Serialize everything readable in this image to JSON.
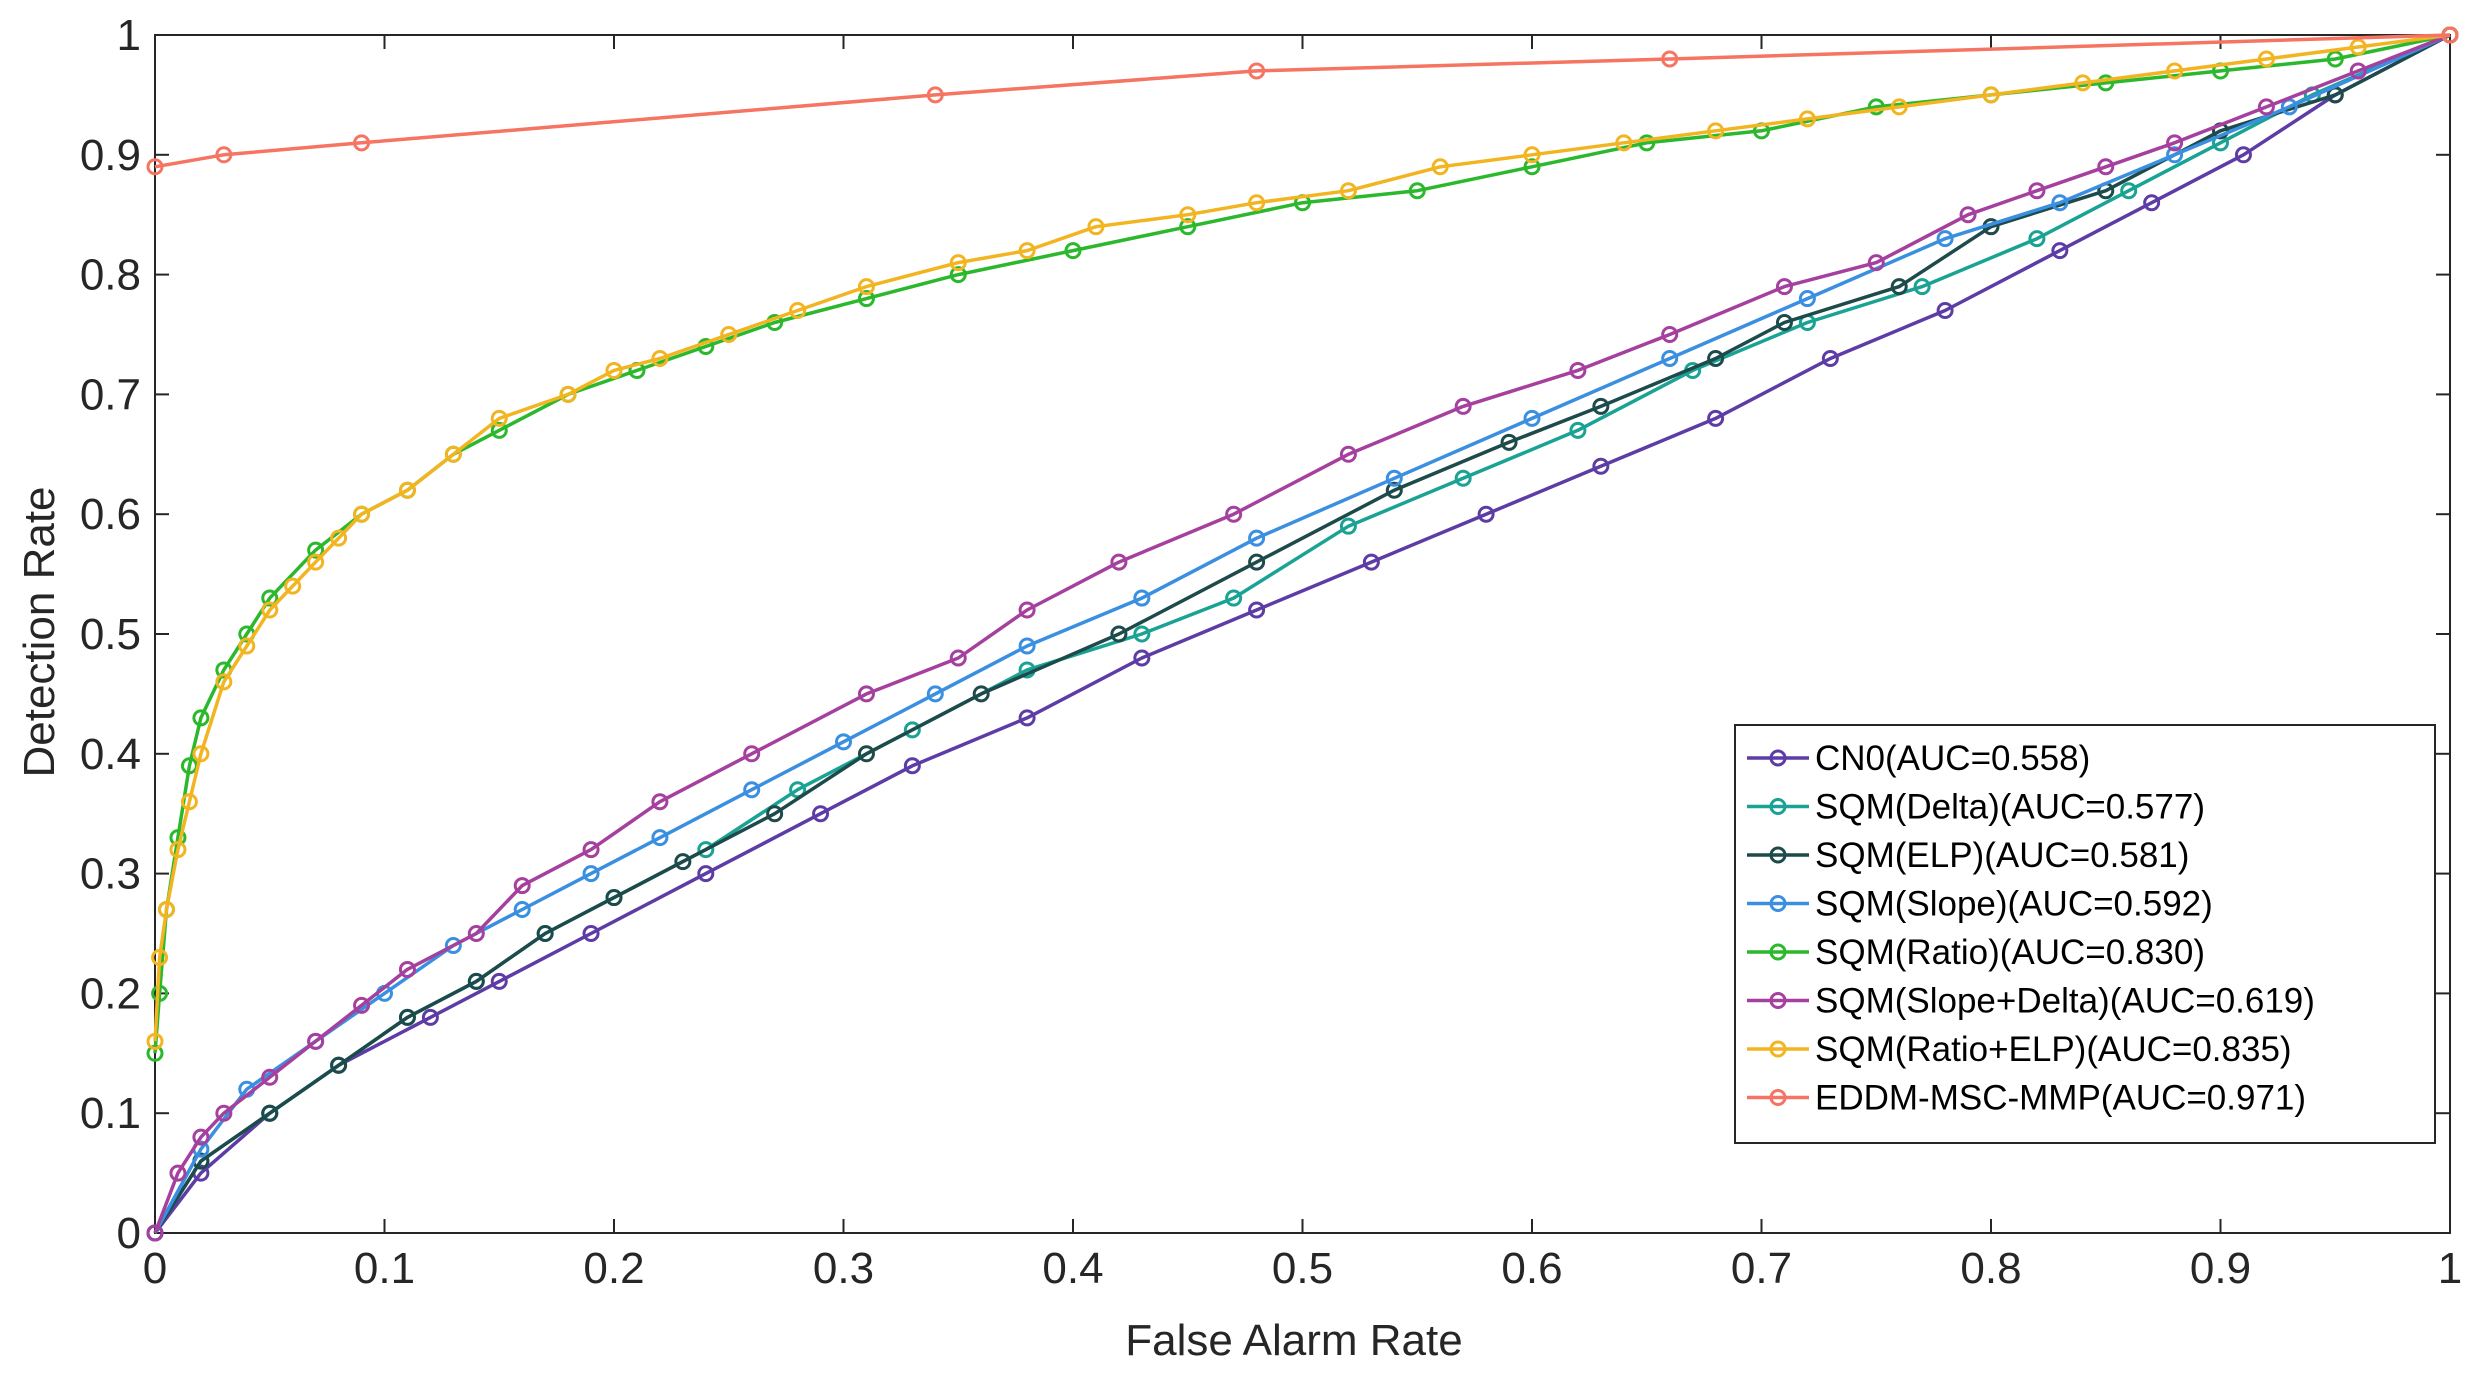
{
  "chart_data": {
    "type": "line",
    "title": "",
    "xlabel": "False Alarm Rate",
    "ylabel": "Detection Rate",
    "xlim": [
      0,
      1
    ],
    "ylim": [
      0,
      1
    ],
    "grid": false,
    "legend_position": "bottom-right",
    "x_ticks": [
      "0",
      "0.1",
      "0.2",
      "0.3",
      "0.4",
      "0.5",
      "0.6",
      "0.7",
      "0.8",
      "0.9",
      "1"
    ],
    "y_ticks": [
      "0",
      "0.1",
      "0.2",
      "0.3",
      "0.4",
      "0.5",
      "0.6",
      "0.7",
      "0.8",
      "0.9",
      "1"
    ],
    "series": [
      {
        "name": "CN0(AUC=0.558)",
        "color": "#5e3ca6",
        "x": [
          0,
          0.02,
          0.05,
          0.08,
          0.12,
          0.15,
          0.19,
          0.24,
          0.29,
          0.33,
          0.38,
          0.43,
          0.48,
          0.53,
          0.58,
          0.63,
          0.68,
          0.73,
          0.78,
          0.83,
          0.87,
          0.91,
          0.95,
          1
        ],
        "y": [
          0,
          0.05,
          0.1,
          0.14,
          0.18,
          0.21,
          0.25,
          0.3,
          0.35,
          0.39,
          0.43,
          0.48,
          0.52,
          0.56,
          0.6,
          0.64,
          0.68,
          0.73,
          0.77,
          0.82,
          0.86,
          0.9,
          0.95,
          1
        ]
      },
      {
        "name": "SQM(Delta)(AUC=0.577)",
        "color": "#1aa394",
        "x": [
          0,
          0.02,
          0.05,
          0.08,
          0.11,
          0.14,
          0.17,
          0.2,
          0.24,
          0.28,
          0.33,
          0.38,
          0.43,
          0.47,
          0.52,
          0.57,
          0.62,
          0.67,
          0.72,
          0.77,
          0.82,
          0.86,
          0.9,
          0.94,
          1
        ],
        "y": [
          0,
          0.06,
          0.1,
          0.14,
          0.18,
          0.21,
          0.25,
          0.28,
          0.32,
          0.37,
          0.42,
          0.47,
          0.5,
          0.53,
          0.59,
          0.63,
          0.67,
          0.72,
          0.76,
          0.79,
          0.83,
          0.87,
          0.91,
          0.95,
          1
        ]
      },
      {
        "name": "SQM(ELP)(AUC=0.581)",
        "color": "#1d4a4a",
        "x": [
          0,
          0.02,
          0.05,
          0.08,
          0.11,
          0.14,
          0.17,
          0.2,
          0.23,
          0.27,
          0.31,
          0.36,
          0.42,
          0.48,
          0.54,
          0.59,
          0.63,
          0.68,
          0.71,
          0.76,
          0.8,
          0.85,
          0.9,
          0.95,
          1
        ],
        "y": [
          0,
          0.06,
          0.1,
          0.14,
          0.18,
          0.21,
          0.25,
          0.28,
          0.31,
          0.35,
          0.4,
          0.45,
          0.5,
          0.56,
          0.62,
          0.66,
          0.69,
          0.73,
          0.76,
          0.79,
          0.84,
          0.87,
          0.92,
          0.95,
          1
        ]
      },
      {
        "name": "SQM(Slope)(AUC=0.592)",
        "color": "#3b8fe0",
        "x": [
          0,
          0.02,
          0.04,
          0.07,
          0.1,
          0.13,
          0.16,
          0.19,
          0.22,
          0.26,
          0.3,
          0.34,
          0.38,
          0.43,
          0.48,
          0.54,
          0.6,
          0.66,
          0.72,
          0.78,
          0.83,
          0.88,
          0.93,
          1
        ],
        "y": [
          0,
          0.07,
          0.12,
          0.16,
          0.2,
          0.24,
          0.27,
          0.3,
          0.33,
          0.37,
          0.41,
          0.45,
          0.49,
          0.53,
          0.58,
          0.63,
          0.68,
          0.73,
          0.78,
          0.83,
          0.86,
          0.9,
          0.94,
          1
        ]
      },
      {
        "name": "SQM(Ratio)(AUC=0.830)",
        "color": "#2cb82c",
        "x": [
          0,
          0.002,
          0.005,
          0.01,
          0.015,
          0.02,
          0.03,
          0.04,
          0.05,
          0.07,
          0.09,
          0.11,
          0.13,
          0.15,
          0.18,
          0.21,
          0.24,
          0.27,
          0.31,
          0.35,
          0.4,
          0.45,
          0.5,
          0.55,
          0.6,
          0.65,
          0.7,
          0.75,
          0.8,
          0.85,
          0.9,
          0.95,
          1
        ],
        "y": [
          0.15,
          0.2,
          0.27,
          0.33,
          0.39,
          0.43,
          0.47,
          0.5,
          0.53,
          0.57,
          0.6,
          0.62,
          0.65,
          0.67,
          0.7,
          0.72,
          0.74,
          0.76,
          0.78,
          0.8,
          0.82,
          0.84,
          0.86,
          0.87,
          0.89,
          0.91,
          0.92,
          0.94,
          0.95,
          0.96,
          0.97,
          0.98,
          1
        ]
      },
      {
        "name": "SQM(Slope+Delta)(AUC=0.619)",
        "color": "#a5409f",
        "x": [
          0,
          0.01,
          0.02,
          0.03,
          0.05,
          0.07,
          0.09,
          0.11,
          0.14,
          0.16,
          0.19,
          0.22,
          0.26,
          0.31,
          0.35,
          0.38,
          0.42,
          0.47,
          0.52,
          0.57,
          0.62,
          0.66,
          0.71,
          0.75,
          0.79,
          0.82,
          0.85,
          0.88,
          0.92,
          0.96,
          1
        ],
        "y": [
          0,
          0.05,
          0.08,
          0.1,
          0.13,
          0.16,
          0.19,
          0.22,
          0.25,
          0.29,
          0.32,
          0.36,
          0.4,
          0.45,
          0.48,
          0.52,
          0.56,
          0.6,
          0.65,
          0.69,
          0.72,
          0.75,
          0.79,
          0.81,
          0.85,
          0.87,
          0.89,
          0.91,
          0.94,
          0.97,
          1
        ]
      },
      {
        "name": "SQM(Ratio+ELP)(AUC=0.835)",
        "color": "#f2b521",
        "x": [
          0,
          0.002,
          0.005,
          0.01,
          0.015,
          0.02,
          0.03,
          0.04,
          0.05,
          0.06,
          0.07,
          0.08,
          0.09,
          0.11,
          0.13,
          0.15,
          0.18,
          0.2,
          0.22,
          0.25,
          0.28,
          0.31,
          0.35,
          0.38,
          0.41,
          0.45,
          0.48,
          0.52,
          0.56,
          0.6,
          0.64,
          0.68,
          0.72,
          0.76,
          0.8,
          0.84,
          0.88,
          0.92,
          0.96,
          1
        ],
        "y": [
          0.16,
          0.23,
          0.27,
          0.32,
          0.36,
          0.4,
          0.46,
          0.49,
          0.52,
          0.54,
          0.56,
          0.58,
          0.6,
          0.62,
          0.65,
          0.68,
          0.7,
          0.72,
          0.73,
          0.75,
          0.77,
          0.79,
          0.81,
          0.82,
          0.84,
          0.85,
          0.86,
          0.87,
          0.89,
          0.9,
          0.91,
          0.92,
          0.93,
          0.94,
          0.95,
          0.96,
          0.97,
          0.98,
          0.99,
          1
        ]
      },
      {
        "name": "EDDM-MSC-MMP(AUC=0.971)",
        "color": "#f57462",
        "x": [
          0,
          0.03,
          0.09,
          0.34,
          0.48,
          0.66,
          1
        ],
        "y": [
          0.89,
          0.9,
          0.91,
          0.95,
          0.97,
          0.98,
          1
        ]
      }
    ]
  }
}
